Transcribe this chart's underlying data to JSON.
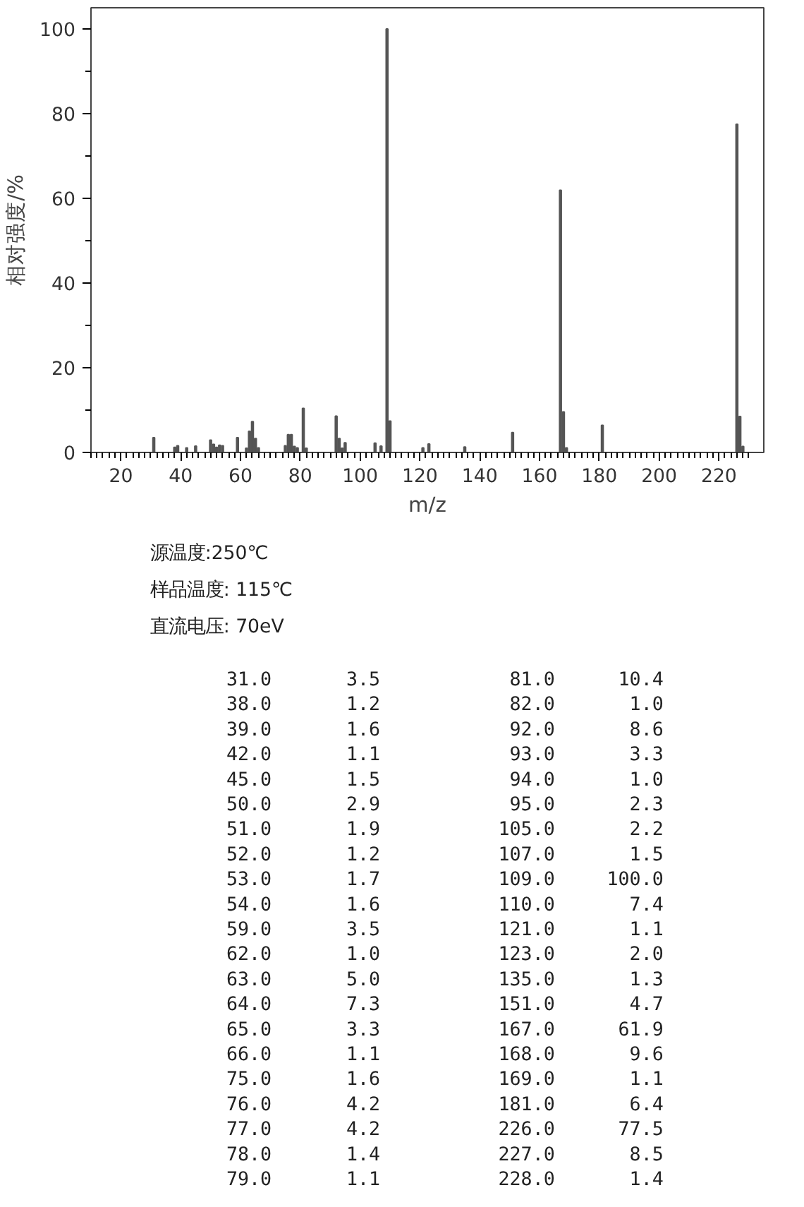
{
  "chart_data": [
    {
      "type": "bar",
      "xlabel": "m/z",
      "ylabel": "相对强度/%",
      "x": [
        31,
        38,
        39,
        42,
        45,
        50,
        51,
        52,
        53,
        54,
        59,
        62,
        63,
        64,
        65,
        66,
        75,
        76,
        77,
        78,
        79,
        81,
        82,
        92,
        93,
        94,
        95,
        105,
        107,
        109,
        110,
        121,
        123,
        135,
        151,
        167,
        168,
        169,
        181,
        226,
        227,
        228
      ],
      "values": [
        3.5,
        1.2,
        1.6,
        1.1,
        1.5,
        2.9,
        1.9,
        1.2,
        1.7,
        1.6,
        3.5,
        1.0,
        5.0,
        7.3,
        3.3,
        1.1,
        1.6,
        4.2,
        4.2,
        1.4,
        1.1,
        10.4,
        1.0,
        8.6,
        3.3,
        1.0,
        2.3,
        2.2,
        1.5,
        100.0,
        7.4,
        1.1,
        2.0,
        1.3,
        4.7,
        61.9,
        9.6,
        1.1,
        6.4,
        77.5,
        8.5,
        1.4
      ],
      "color": "#555555",
      "xlim": [
        10,
        235
      ],
      "ylim": [
        0,
        105
      ],
      "xticks": [
        20,
        40,
        60,
        80,
        100,
        120,
        140,
        160,
        180,
        200,
        220
      ],
      "yticks": [
        0,
        20,
        40,
        60,
        80,
        100
      ],
      "annotations": [
        "源温度:250℃",
        "样品温度: 115℃",
        "直流电压: 70eV"
      ]
    },
    {
      "type": "other",
      "annotations": [
        "31.0",
        "3.5",
        "81.0",
        "10.4",
        "38.0",
        "1.2",
        "82.0",
        "1.0",
        "39.0",
        "1.6",
        "92.0",
        "8.6",
        "42.0",
        "1.1",
        "93.0",
        "3.3",
        "45.0",
        "1.5",
        "94.0",
        "1.0",
        "50.0",
        "2.9",
        "95.0",
        "2.3",
        "51.0",
        "1.9",
        "105.0",
        "2.2",
        "52.0",
        "1.2",
        "107.0",
        "1.5",
        "53.0",
        "1.7",
        "109.0",
        "100.0",
        "54.0",
        "1.6",
        "110.0",
        "7.4",
        "59.0",
        "3.5",
        "121.0",
        "1.1",
        "62.0",
        "1.0",
        "123.0",
        "2.0",
        "63.0",
        "5.0",
        "135.0",
        "1.3",
        "64.0",
        "7.3",
        "151.0",
        "4.7",
        "65.0",
        "3.3",
        "167.0",
        "61.9",
        "66.0",
        "1.1",
        "168.0",
        "9.6",
        "75.0",
        "1.6",
        "169.0",
        "1.1",
        "76.0",
        "4.2",
        "181.0",
        "6.4",
        "77.0",
        "4.2",
        "226.0",
        "77.5",
        "78.0",
        "1.4",
        "227.0",
        "8.5",
        "79.0",
        "1.1",
        "228.0",
        "1.4"
      ]
    }
  ]
}
